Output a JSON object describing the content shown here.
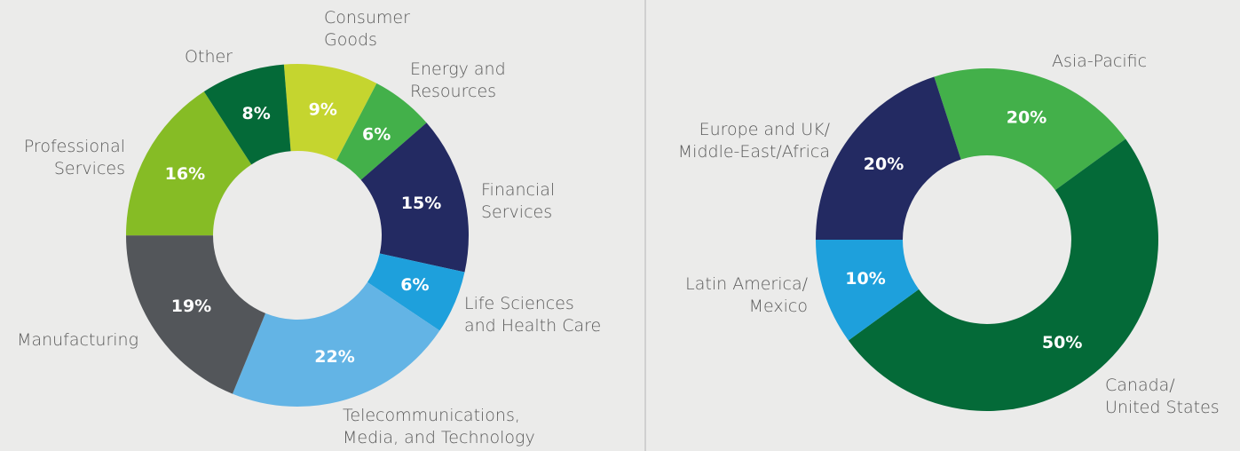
{
  "chart_data": [
    {
      "type": "pie",
      "categories": [
        "Consumer\nGoods",
        "Energy and\nResources",
        "Financial\nServices",
        "Life Sciences\nand Health Care",
        "Telecommunications,\nMedia, and Technology",
        "Manufacturing",
        "Professional\nServices",
        "Other"
      ],
      "values": [
        9,
        6,
        15,
        6,
        22,
        19,
        16,
        8
      ],
      "value_labels": [
        "9%",
        "6%",
        "15%",
        "6%",
        "22%",
        "19%",
        "16%",
        "8%"
      ],
      "colors": [
        "#c5d52f",
        "#43b04a",
        "#232a62",
        "#1ea0dc",
        "#63b4e5",
        "#53565a",
        "#86bc25",
        "#046a38"
      ]
    },
    {
      "type": "pie",
      "categories": [
        "Asia-Pacific",
        "Canada/\nUnited States",
        "Latin America/\nMexico",
        "Europe and UK/\nMiddle-East/Africa"
      ],
      "values": [
        20,
        50,
        10,
        20
      ],
      "value_labels": [
        "20%",
        "50%",
        "10%",
        "20%"
      ],
      "colors": [
        "#43b04a",
        "#046a38",
        "#1ea0dc",
        "#232a62"
      ]
    }
  ]
}
